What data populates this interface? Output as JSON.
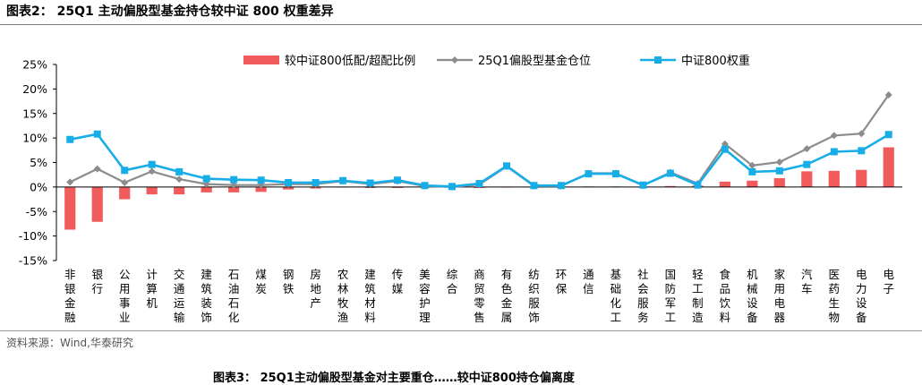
{
  "figure": {
    "label": "图表2：",
    "title": "25Q1 主动偏股型基金持仓较中证 800 权重差异"
  },
  "source_note": "资料来源：Wind,华泰研究",
  "next_caption": "图表3：  25Q1主动偏股型基金对主要重仓……较中证800持仓偏离度",
  "colors": {
    "bar": "#f25b5b",
    "fund_line": "#8c8c8c",
    "index_line": "#17aee8",
    "axis": "#000000"
  },
  "chart_data": {
    "type": "bar+line",
    "categories": [
      "非银金融",
      "银行",
      "公用事业",
      "计算机",
      "交通运输",
      "建筑装饰",
      "石油石化",
      "煤炭",
      "钢铁",
      "房地产",
      "农林牧渔",
      "建筑材料",
      "传媒",
      "美容护理",
      "综合",
      "商贸零售",
      "有色金属",
      "纺织服饰",
      "环保",
      "通信",
      "基础化工",
      "社会服务",
      "国防军工",
      "轻工制造",
      "食品饮料",
      "机械设备",
      "家用电器",
      "汽车",
      "医药生物",
      "电力设备",
      "电子"
    ],
    "series": [
      {
        "name": "较中证800低配/超配比例",
        "kind": "bar",
        "color": "#f25b5b",
        "values": [
          -8.7,
          -7.1,
          -2.5,
          -1.5,
          -1.5,
          -1.1,
          -1.1,
          -1.0,
          -0.5,
          -0.3,
          -0.1,
          -0.2,
          -0.2,
          -0.1,
          -0.1,
          -0.2,
          -0.1,
          -0.1,
          -0.1,
          0.1,
          0.1,
          -0.1,
          0.2,
          0.3,
          1.1,
          1.3,
          1.8,
          3.2,
          3.3,
          3.5,
          8.1
        ]
      },
      {
        "name": "25Q1偏股型基金仓位",
        "kind": "line",
        "marker": "diamond",
        "color": "#8c8c8c",
        "values": [
          1.0,
          3.7,
          0.9,
          3.2,
          1.6,
          0.6,
          0.4,
          0.4,
          0.6,
          0.6,
          1.2,
          0.6,
          1.2,
          0.2,
          0.0,
          0.5,
          4.2,
          0.2,
          0.2,
          2.8,
          2.8,
          0.3,
          3.0,
          0.7,
          8.8,
          4.4,
          5.1,
          7.8,
          10.5,
          10.9,
          18.8
        ]
      },
      {
        "name": "中证800权重",
        "kind": "line",
        "marker": "square",
        "color": "#17aee8",
        "values": [
          9.7,
          10.8,
          3.4,
          4.6,
          3.1,
          1.7,
          1.5,
          1.4,
          0.9,
          0.9,
          1.3,
          0.8,
          1.4,
          0.3,
          0.1,
          0.7,
          4.3,
          0.3,
          0.3,
          2.7,
          2.7,
          0.4,
          2.8,
          0.4,
          7.7,
          3.1,
          3.3,
          4.6,
          7.2,
          7.4,
          10.7
        ]
      }
    ],
    "y_axis": {
      "min": -15,
      "max": 25,
      "step": 5,
      "tick_labels": [
        "25%",
        "20%",
        "15%",
        "10%",
        "5%",
        "0%",
        "-5%",
        "-10%",
        "-15%"
      ]
    },
    "legend_position": "top",
    "grid": false
  }
}
